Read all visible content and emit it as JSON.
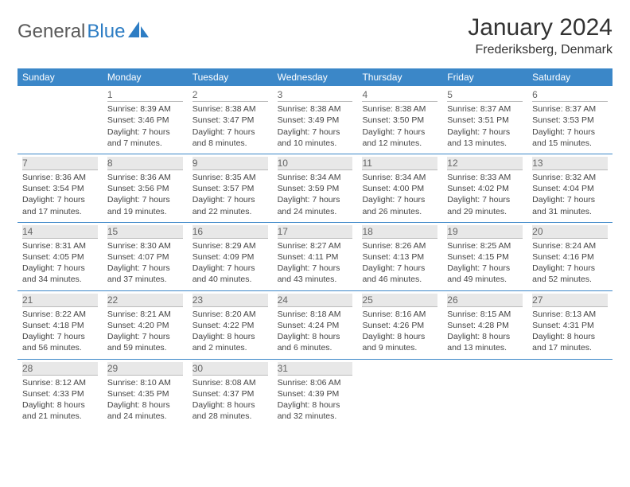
{
  "logo": {
    "word1": "General",
    "word2": "Blue"
  },
  "title": "January 2024",
  "location": "Frederiksberg, Denmark",
  "colors": {
    "header_bg": "#3b87c8",
    "header_fg": "#ffffff",
    "daynum_shade": "#e8e8e8",
    "rule": "#3b87c8",
    "text": "#444444",
    "logo_gray": "#5a5a5a",
    "logo_blue": "#2d7dc4"
  },
  "day_headers": [
    "Sunday",
    "Monday",
    "Tuesday",
    "Wednesday",
    "Thursday",
    "Friday",
    "Saturday"
  ],
  "weeks": [
    [
      {
        "day": "",
        "sunrise": "",
        "sunset": "",
        "daylight": "",
        "empty": true
      },
      {
        "day": "1",
        "sunrise": "Sunrise: 8:39 AM",
        "sunset": "Sunset: 3:46 PM",
        "daylight": "Daylight: 7 hours and 7 minutes."
      },
      {
        "day": "2",
        "sunrise": "Sunrise: 8:38 AM",
        "sunset": "Sunset: 3:47 PM",
        "daylight": "Daylight: 7 hours and 8 minutes."
      },
      {
        "day": "3",
        "sunrise": "Sunrise: 8:38 AM",
        "sunset": "Sunset: 3:49 PM",
        "daylight": "Daylight: 7 hours and 10 minutes."
      },
      {
        "day": "4",
        "sunrise": "Sunrise: 8:38 AM",
        "sunset": "Sunset: 3:50 PM",
        "daylight": "Daylight: 7 hours and 12 minutes."
      },
      {
        "day": "5",
        "sunrise": "Sunrise: 8:37 AM",
        "sunset": "Sunset: 3:51 PM",
        "daylight": "Daylight: 7 hours and 13 minutes."
      },
      {
        "day": "6",
        "sunrise": "Sunrise: 8:37 AM",
        "sunset": "Sunset: 3:53 PM",
        "daylight": "Daylight: 7 hours and 15 minutes."
      }
    ],
    [
      {
        "day": "7",
        "sunrise": "Sunrise: 8:36 AM",
        "sunset": "Sunset: 3:54 PM",
        "daylight": "Daylight: 7 hours and 17 minutes.",
        "shade": true
      },
      {
        "day": "8",
        "sunrise": "Sunrise: 8:36 AM",
        "sunset": "Sunset: 3:56 PM",
        "daylight": "Daylight: 7 hours and 19 minutes.",
        "shade": true
      },
      {
        "day": "9",
        "sunrise": "Sunrise: 8:35 AM",
        "sunset": "Sunset: 3:57 PM",
        "daylight": "Daylight: 7 hours and 22 minutes.",
        "shade": true
      },
      {
        "day": "10",
        "sunrise": "Sunrise: 8:34 AM",
        "sunset": "Sunset: 3:59 PM",
        "daylight": "Daylight: 7 hours and 24 minutes.",
        "shade": true
      },
      {
        "day": "11",
        "sunrise": "Sunrise: 8:34 AM",
        "sunset": "Sunset: 4:00 PM",
        "daylight": "Daylight: 7 hours and 26 minutes.",
        "shade": true
      },
      {
        "day": "12",
        "sunrise": "Sunrise: 8:33 AM",
        "sunset": "Sunset: 4:02 PM",
        "daylight": "Daylight: 7 hours and 29 minutes.",
        "shade": true
      },
      {
        "day": "13",
        "sunrise": "Sunrise: 8:32 AM",
        "sunset": "Sunset: 4:04 PM",
        "daylight": "Daylight: 7 hours and 31 minutes.",
        "shade": true
      }
    ],
    [
      {
        "day": "14",
        "sunrise": "Sunrise: 8:31 AM",
        "sunset": "Sunset: 4:05 PM",
        "daylight": "Daylight: 7 hours and 34 minutes.",
        "shade": true
      },
      {
        "day": "15",
        "sunrise": "Sunrise: 8:30 AM",
        "sunset": "Sunset: 4:07 PM",
        "daylight": "Daylight: 7 hours and 37 minutes.",
        "shade": true
      },
      {
        "day": "16",
        "sunrise": "Sunrise: 8:29 AM",
        "sunset": "Sunset: 4:09 PM",
        "daylight": "Daylight: 7 hours and 40 minutes.",
        "shade": true
      },
      {
        "day": "17",
        "sunrise": "Sunrise: 8:27 AM",
        "sunset": "Sunset: 4:11 PM",
        "daylight": "Daylight: 7 hours and 43 minutes.",
        "shade": true
      },
      {
        "day": "18",
        "sunrise": "Sunrise: 8:26 AM",
        "sunset": "Sunset: 4:13 PM",
        "daylight": "Daylight: 7 hours and 46 minutes.",
        "shade": true
      },
      {
        "day": "19",
        "sunrise": "Sunrise: 8:25 AM",
        "sunset": "Sunset: 4:15 PM",
        "daylight": "Daylight: 7 hours and 49 minutes.",
        "shade": true
      },
      {
        "day": "20",
        "sunrise": "Sunrise: 8:24 AM",
        "sunset": "Sunset: 4:16 PM",
        "daylight": "Daylight: 7 hours and 52 minutes.",
        "shade": true
      }
    ],
    [
      {
        "day": "21",
        "sunrise": "Sunrise: 8:22 AM",
        "sunset": "Sunset: 4:18 PM",
        "daylight": "Daylight: 7 hours and 56 minutes.",
        "shade": true
      },
      {
        "day": "22",
        "sunrise": "Sunrise: 8:21 AM",
        "sunset": "Sunset: 4:20 PM",
        "daylight": "Daylight: 7 hours and 59 minutes.",
        "shade": true
      },
      {
        "day": "23",
        "sunrise": "Sunrise: 8:20 AM",
        "sunset": "Sunset: 4:22 PM",
        "daylight": "Daylight: 8 hours and 2 minutes.",
        "shade": true
      },
      {
        "day": "24",
        "sunrise": "Sunrise: 8:18 AM",
        "sunset": "Sunset: 4:24 PM",
        "daylight": "Daylight: 8 hours and 6 minutes.",
        "shade": true
      },
      {
        "day": "25",
        "sunrise": "Sunrise: 8:16 AM",
        "sunset": "Sunset: 4:26 PM",
        "daylight": "Daylight: 8 hours and 9 minutes.",
        "shade": true
      },
      {
        "day": "26",
        "sunrise": "Sunrise: 8:15 AM",
        "sunset": "Sunset: 4:28 PM",
        "daylight": "Daylight: 8 hours and 13 minutes.",
        "shade": true
      },
      {
        "day": "27",
        "sunrise": "Sunrise: 8:13 AM",
        "sunset": "Sunset: 4:31 PM",
        "daylight": "Daylight: 8 hours and 17 minutes.",
        "shade": true
      }
    ],
    [
      {
        "day": "28",
        "sunrise": "Sunrise: 8:12 AM",
        "sunset": "Sunset: 4:33 PM",
        "daylight": "Daylight: 8 hours and 21 minutes.",
        "shade": true
      },
      {
        "day": "29",
        "sunrise": "Sunrise: 8:10 AM",
        "sunset": "Sunset: 4:35 PM",
        "daylight": "Daylight: 8 hours and 24 minutes.",
        "shade": true
      },
      {
        "day": "30",
        "sunrise": "Sunrise: 8:08 AM",
        "sunset": "Sunset: 4:37 PM",
        "daylight": "Daylight: 8 hours and 28 minutes.",
        "shade": true
      },
      {
        "day": "31",
        "sunrise": "Sunrise: 8:06 AM",
        "sunset": "Sunset: 4:39 PM",
        "daylight": "Daylight: 8 hours and 32 minutes.",
        "shade": true
      },
      {
        "day": "",
        "sunrise": "",
        "sunset": "",
        "daylight": "",
        "empty": true
      },
      {
        "day": "",
        "sunrise": "",
        "sunset": "",
        "daylight": "",
        "empty": true
      },
      {
        "day": "",
        "sunrise": "",
        "sunset": "",
        "daylight": "",
        "empty": true
      }
    ]
  ]
}
